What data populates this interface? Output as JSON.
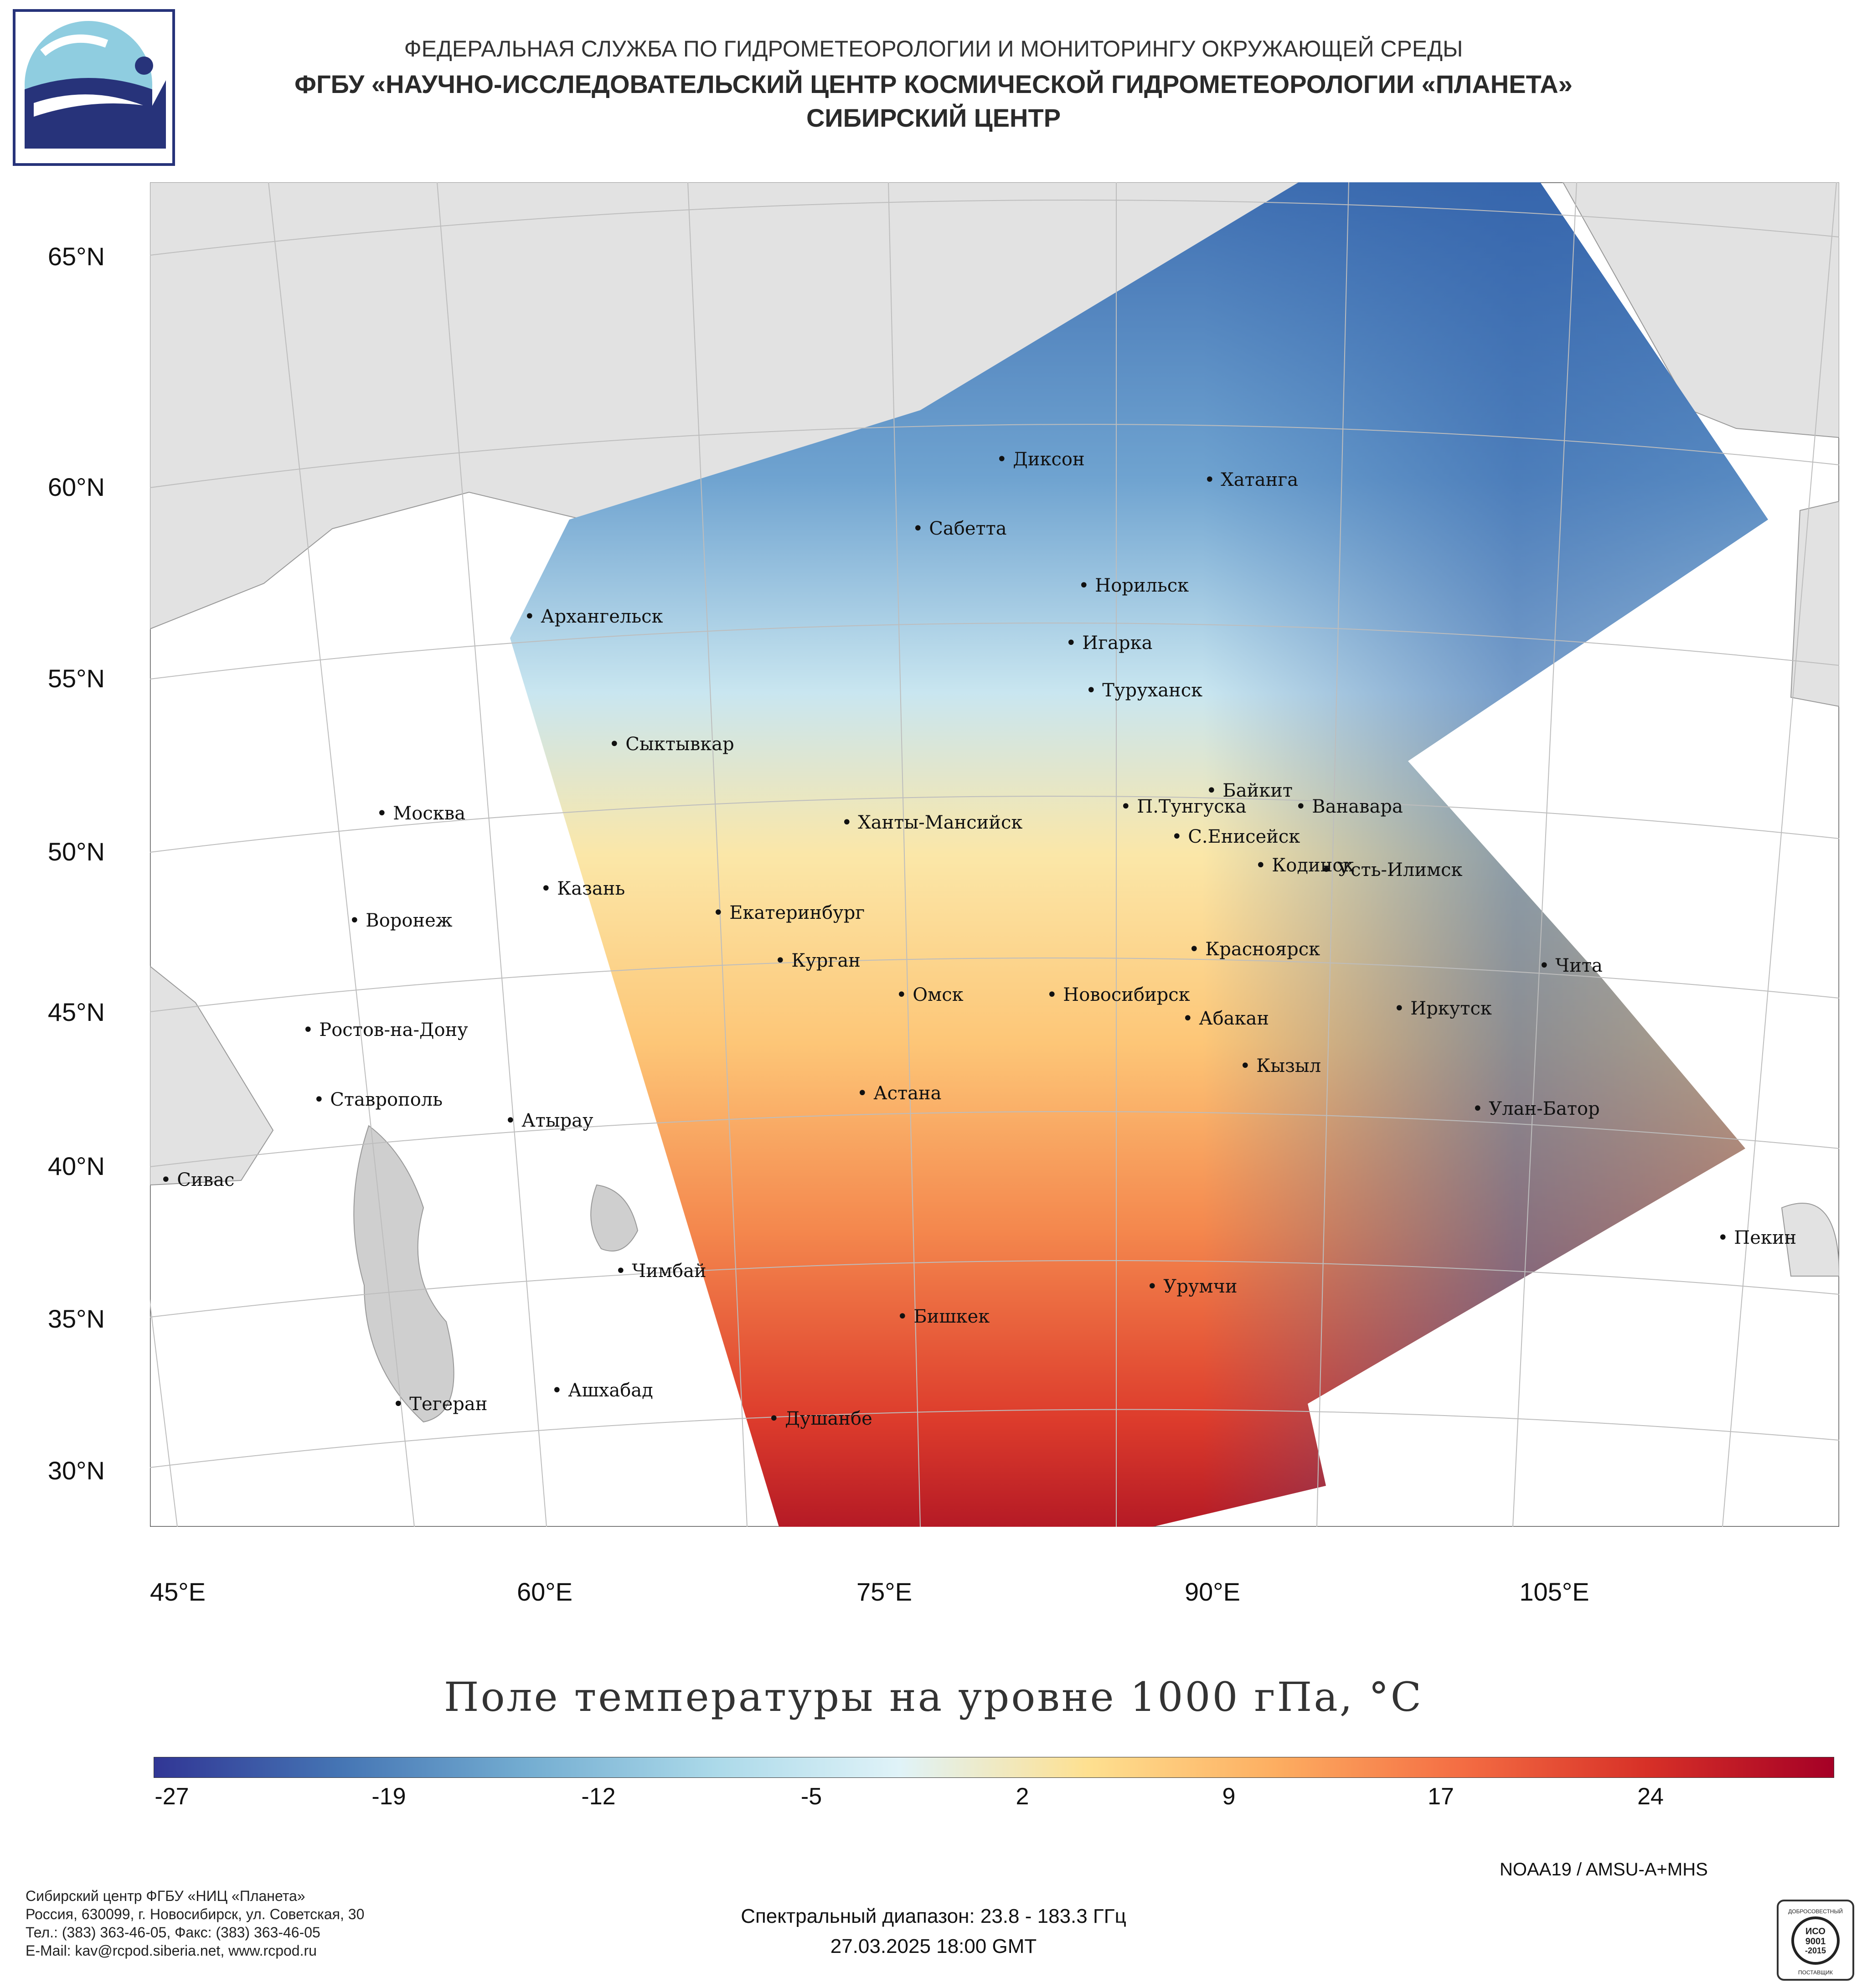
{
  "header": {
    "line1": "ФЕДЕРАЛЬНАЯ СЛУЖБА ПО ГИДРОМЕТЕОРОЛОГИИ И МОНИТОРИНГУ ОКРУЖАЮЩЕЙ СРЕДЫ",
    "line2": "ФГБУ «НАУЧНО-ИССЛЕДОВАТЕЛЬСКИЙ ЦЕНТР КОСМИЧЕСКОЙ ГИДРОМЕТЕОРОЛОГИИ «ПЛАНЕТА»",
    "line3": "СИБИРСКИЙ ЦЕНТР"
  },
  "map": {
    "latitude_labels": [
      "65°N",
      "60°N",
      "55°N",
      "50°N",
      "45°N",
      "40°N",
      "35°N",
      "30°N"
    ],
    "longitude_labels": [
      "45°E",
      "60°E",
      "75°E",
      "90°E",
      "105°E"
    ],
    "cities": [
      {
        "name": "Диксон"
      },
      {
        "name": "Хатанга"
      },
      {
        "name": "Сабетта"
      },
      {
        "name": "Норильск"
      },
      {
        "name": "Архангельск"
      },
      {
        "name": "Игарка"
      },
      {
        "name": "Туруханск"
      },
      {
        "name": "Сыктывкар"
      },
      {
        "name": "Байкит"
      },
      {
        "name": "П.Тунгуска"
      },
      {
        "name": "Ванавара"
      },
      {
        "name": "Москва"
      },
      {
        "name": "Ханты-Мансийск"
      },
      {
        "name": "С.Енисейск"
      },
      {
        "name": "Кодинск"
      },
      {
        "name": "Усть-Илимск"
      },
      {
        "name": "Казань"
      },
      {
        "name": "Екатеринбург"
      },
      {
        "name": "Воронеж"
      },
      {
        "name": "Курган"
      },
      {
        "name": "Красноярск"
      },
      {
        "name": "Чита"
      },
      {
        "name": "Омск"
      },
      {
        "name": "Новосибирск"
      },
      {
        "name": "Иркутск"
      },
      {
        "name": "Абакан"
      },
      {
        "name": "Ростов-на-Дону"
      },
      {
        "name": "Кызыл"
      },
      {
        "name": "Астана"
      },
      {
        "name": "Ставрополь"
      },
      {
        "name": "Улан-Батор"
      },
      {
        "name": "Атырау"
      },
      {
        "name": "Сивас"
      },
      {
        "name": "Пекин"
      },
      {
        "name": "Чимбай"
      },
      {
        "name": "Урумчи"
      },
      {
        "name": "Бишкек"
      },
      {
        "name": "Ашхабад"
      },
      {
        "name": "Тегеран"
      },
      {
        "name": "Душанбе"
      }
    ]
  },
  "title": "Поле температуры на уровне 1000 гПа, °C",
  "colorbar": {
    "ticks": [
      "-27",
      "-19",
      "-12",
      "-5",
      "2",
      "9",
      "17",
      "24"
    ],
    "colors": [
      "#313695",
      "#4575b4",
      "#74add1",
      "#abd9e9",
      "#e0f3f8",
      "#fee090",
      "#fdae61",
      "#f46d43",
      "#d73027",
      "#a50026"
    ]
  },
  "footer": {
    "org_lines": [
      "Сибирский центр ФГБУ «НИЦ «Планета»",
      "Россия, 630099, г. Новосибирск, ул. Советская, 30",
      "Тел.: (383) 363-46-05, Факс: (383) 363-46-05",
      "E-Mail: kav@rcpod.siberia.net, www.rcpod.ru"
    ],
    "satellite": "NOAA19 / AMSU-A+MHS",
    "spectral": "Спектральный диапазон: 23.8 - 183.3 ГГц",
    "datetime": "27.03.2025 18:00 GMT",
    "badge_lines": [
      "ДОБРОСОВЕСТНЫЙ",
      "ИСО",
      "9001",
      "-2015",
      "ПОСТАВЩИК"
    ]
  }
}
